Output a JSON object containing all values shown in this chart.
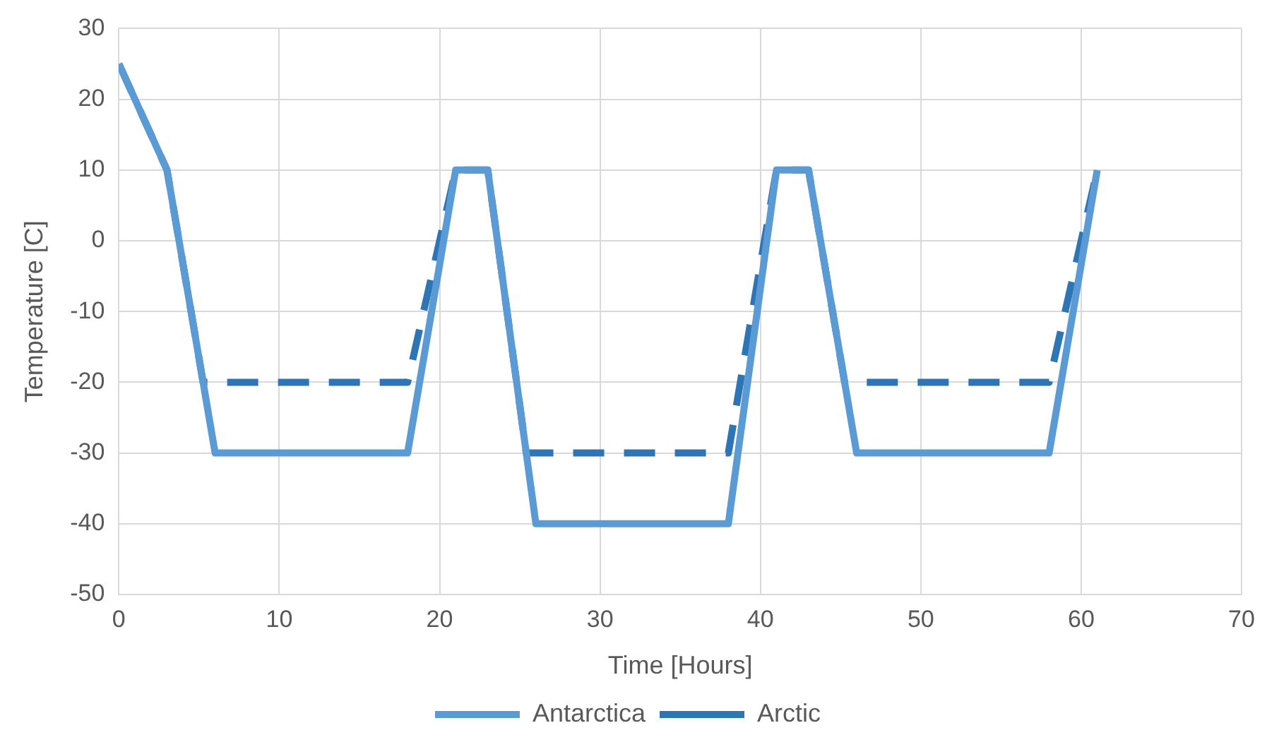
{
  "chart_data": {
    "type": "line",
    "xlabel": "Time [Hours]",
    "ylabel": "Temperature [C]",
    "xlim": [
      0,
      70
    ],
    "xticks": [
      0,
      10,
      20,
      30,
      40,
      50,
      60,
      70
    ],
    "ylim": [
      -50,
      30
    ],
    "yticks": [
      -50,
      -40,
      -30,
      -20,
      -10,
      0,
      10,
      20,
      30
    ],
    "grid": true,
    "legend": "bottom",
    "marker": "none",
    "series": [
      {
        "name": "Antarctica",
        "color": "#5b9bd5",
        "line_style": "solid",
        "x": [
          0,
          3,
          6,
          18,
          21,
          23,
          26,
          38,
          41,
          43,
          46,
          58,
          61
        ],
        "values": [
          25,
          10,
          -30,
          -30,
          10,
          10,
          -40,
          -40,
          10,
          10,
          -30,
          -30,
          10
        ]
      },
      {
        "name": "Arctic",
        "color": "#2e75b6",
        "line_style": "dashed",
        "x": [
          0,
          3,
          5.25,
          18,
          21,
          23,
          25.4,
          38,
          41,
          43,
          45.25,
          58,
          61
        ],
        "values": [
          25,
          10,
          -20,
          -20,
          10,
          10,
          -30,
          -30,
          10,
          10,
          -20,
          -20,
          10
        ]
      }
    ]
  }
}
